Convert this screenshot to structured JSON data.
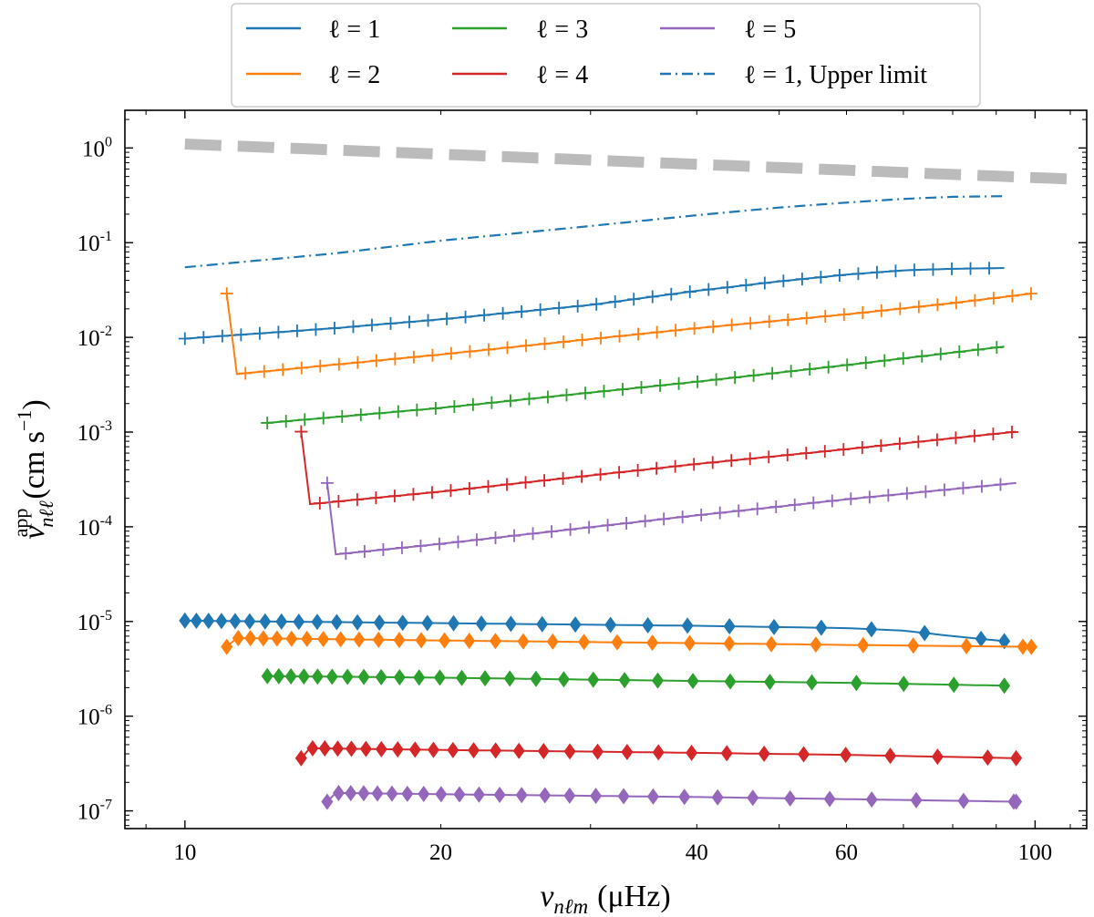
{
  "chart_data": {
    "type": "line",
    "title": "",
    "x_scale": "log",
    "y_scale": "log",
    "xlim": [
      8.5,
      115
    ],
    "ylim": [
      6.5e-08,
      2.5
    ],
    "xticks": [
      10,
      20,
      40,
      60,
      100
    ],
    "xtick_labels": [
      "10",
      "20",
      "40",
      "60",
      "100"
    ],
    "yticks": [
      1e-07,
      1e-06,
      1e-05,
      0.0001,
      0.001,
      0.01,
      0.1,
      1
    ],
    "ytick_labels": [
      {
        "base": "10",
        "exp": "-7"
      },
      {
        "base": "10",
        "exp": "-6"
      },
      {
        "base": "10",
        "exp": "-5"
      },
      {
        "base": "10",
        "exp": "-4"
      },
      {
        "base": "10",
        "exp": "-3"
      },
      {
        "base": "10",
        "exp": "-2"
      },
      {
        "base": "10",
        "exp": "-1"
      },
      {
        "base": "10",
        "exp": "0"
      }
    ],
    "xlabel": {
      "sym": "ν",
      "sub": "nℓm",
      "unit": "(μHz)"
    },
    "ylabel": {
      "sym": "v",
      "sub": "nℓℓ",
      "sup": "app",
      "unit": "(cm s",
      "unit_exp": "−1",
      "unit_close": ")"
    },
    "legend": {
      "position": "top-center",
      "entries": [
        {
          "text": "ℓ = 1",
          "color": "#1f77b4",
          "style": "solid"
        },
        {
          "text": "ℓ = 2",
          "color": "#ff7f0e",
          "style": "solid"
        },
        {
          "text": "ℓ = 3",
          "color": "#2ca02c",
          "style": "solid"
        },
        {
          "text": "ℓ = 4",
          "color": "#d62728",
          "style": "solid"
        },
        {
          "text": "ℓ = 5",
          "color": "#9467bd",
          "style": "solid"
        },
        {
          "text": "ℓ = 1, Upper limit",
          "color": "#1f77b4",
          "style": "dashdot"
        }
      ]
    },
    "reference_line": {
      "name": "reference",
      "color": "#bbbbbb",
      "style": "dashed",
      "points": [
        [
          10,
          1.1
        ],
        [
          110,
          0.47
        ]
      ]
    },
    "upper_limit": {
      "name": "ℓ = 1, Upper limit",
      "color": "#1f77b4",
      "style": "dashdot",
      "points": [
        [
          10,
          0.055
        ],
        [
          15,
          0.077
        ],
        [
          20,
          0.105
        ],
        [
          30,
          0.15
        ],
        [
          40,
          0.195
        ],
        [
          50,
          0.235
        ],
        [
          60,
          0.265
        ],
        [
          70,
          0.29
        ],
        [
          80,
          0.305
        ],
        [
          92,
          0.31
        ]
      ]
    },
    "series": [
      {
        "name": "ℓ = 1",
        "color": "#1f77b4",
        "plus": {
          "x_start": 10,
          "x_end": 92,
          "spacing": 0.022,
          "points": [
            [
              10,
              0.0097
            ],
            [
              15,
              0.0125
            ],
            [
              20,
              0.0155
            ],
            [
              30,
              0.022
            ],
            [
              40,
              0.031
            ],
            [
              50,
              0.039
            ],
            [
              60,
              0.046
            ],
            [
              70,
              0.051
            ],
            [
              80,
              0.053
            ],
            [
              92,
              0.054
            ]
          ]
        },
        "diamond": {
          "x_start": 10,
          "x_end": 92,
          "spacing": 0.0135,
          "points": [
            [
              10,
              1.02e-05
            ],
            [
              20,
              9.6e-06
            ],
            [
              40,
              9e-06
            ],
            [
              60,
              8.5e-06
            ],
            [
              70,
              8e-06
            ],
            [
              80,
              7e-06
            ],
            [
              92,
              6.2e-06
            ]
          ]
        }
      },
      {
        "name": "ℓ = 2",
        "color": "#ff7f0e",
        "plus": {
          "x_start": 11.2,
          "x_end": 99,
          "spacing": 0.022,
          "points": [
            [
              11.2,
              0.004
            ],
            [
              20,
              0.0066
            ],
            [
              40,
              0.0125
            ],
            [
              60,
              0.0175
            ],
            [
              80,
              0.023
            ],
            [
              99,
              0.029
            ]
          ]
        },
        "diamond": {
          "x_start": 11.2,
          "x_end": 99,
          "spacing": 0.0135,
          "points": [
            [
              11.2,
              6.7e-06
            ],
            [
              20,
              6.3e-06
            ],
            [
              40,
              5.9e-06
            ],
            [
              60,
              5.65e-06
            ],
            [
              99,
              5.4e-06
            ]
          ]
        }
      },
      {
        "name": "ℓ = 3",
        "color": "#2ca02c",
        "plus": {
          "x_start": 12.5,
          "x_end": 92,
          "spacing": 0.022,
          "points": [
            [
              12.5,
              0.00125
            ],
            [
              20,
              0.0018
            ],
            [
              40,
              0.0034
            ],
            [
              60,
              0.0051
            ],
            [
              92,
              0.008
            ]
          ]
        },
        "diamond": {
          "x_start": 12.5,
          "x_end": 92,
          "spacing": 0.0135,
          "points": [
            [
              12.5,
              2.65e-06
            ],
            [
              20,
              2.55e-06
            ],
            [
              40,
              2.35e-06
            ],
            [
              60,
              2.25e-06
            ],
            [
              92,
              2.1e-06
            ]
          ]
        }
      },
      {
        "name": "ℓ = 4",
        "color": "#d62728",
        "plus": {
          "x_start": 13.7,
          "x_end": 95,
          "spacing": 0.022,
          "points": [
            [
              13.7,
              0.00017
            ],
            [
              20,
              0.000235
            ],
            [
              40,
              0.00046
            ],
            [
              60,
              0.00066
            ],
            [
              95,
              0.00101
            ]
          ]
        },
        "diamond": {
          "x_start": 13.7,
          "x_end": 95,
          "spacing": 0.0135,
          "points": [
            [
              13.7,
              4.6e-07
            ],
            [
              20,
              4.4e-07
            ],
            [
              40,
              4.1e-07
            ],
            [
              60,
              3.9e-07
            ],
            [
              95,
              3.6e-07
            ]
          ]
        }
      },
      {
        "name": "ℓ = 5",
        "color": "#9467bd",
        "plus": {
          "x_start": 14.7,
          "x_end": 95,
          "spacing": 0.022,
          "points": [
            [
              14.7,
              5e-05
            ],
            [
              20,
              6.6e-05
            ],
            [
              40,
              0.000132
            ],
            [
              60,
              0.000195
            ],
            [
              95,
              0.00029
            ]
          ]
        },
        "diamond": {
          "x_start": 14.7,
          "x_end": 95,
          "spacing": 0.0135,
          "points": [
            [
              14.7,
              1.55e-07
            ],
            [
              20,
              1.5e-07
            ],
            [
              40,
              1.4e-07
            ],
            [
              60,
              1.33e-07
            ],
            [
              95,
              1.25e-07
            ]
          ]
        }
      }
    ]
  }
}
